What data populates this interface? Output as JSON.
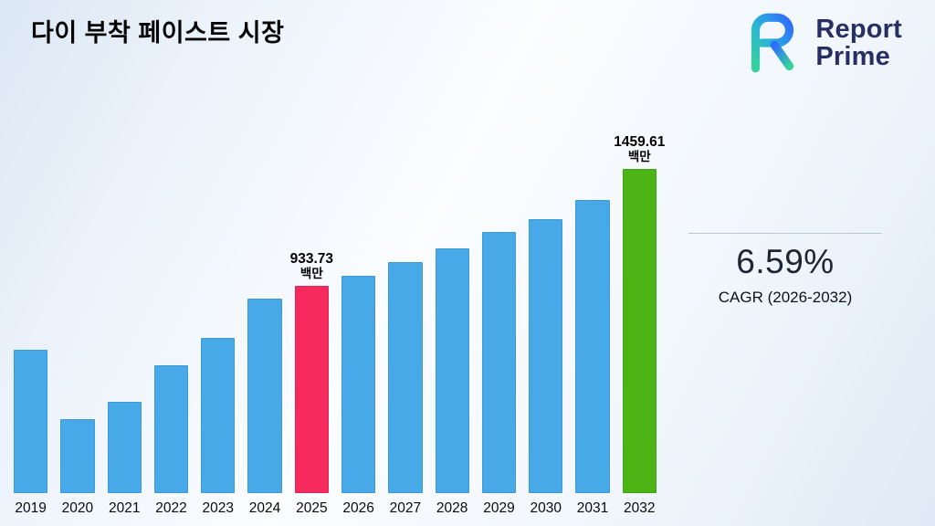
{
  "title": "다이 부착 페이스트 시장",
  "logo": {
    "line1": "Report",
    "line2": "Prime"
  },
  "cagr": {
    "value": "6.59%",
    "label": "CAGR (2026-2032)"
  },
  "chart_data": {
    "type": "bar",
    "title": "다이 부착 페이스트 시장",
    "unit": "백만",
    "categories": [
      "2019",
      "2020",
      "2021",
      "2022",
      "2023",
      "2024",
      "2025",
      "2026",
      "2027",
      "2028",
      "2029",
      "2030",
      "2031",
      "2032"
    ],
    "values": [
      645,
      335,
      410,
      575,
      700,
      875,
      933.73,
      980,
      1040,
      1100,
      1175,
      1235,
      1320,
      1459.61
    ],
    "ylim": [
      0,
      1500
    ],
    "grid": false,
    "legend": "none",
    "bar_color": "#47a9e8",
    "highlight_colors": {
      "2025": "#f72a5e",
      "2032": "#4cb515"
    },
    "annotations": [
      {
        "category": "2025",
        "value": "933.73",
        "unit": "백만"
      },
      {
        "category": "2032",
        "value": "1459.61",
        "unit": "백만"
      }
    ]
  }
}
